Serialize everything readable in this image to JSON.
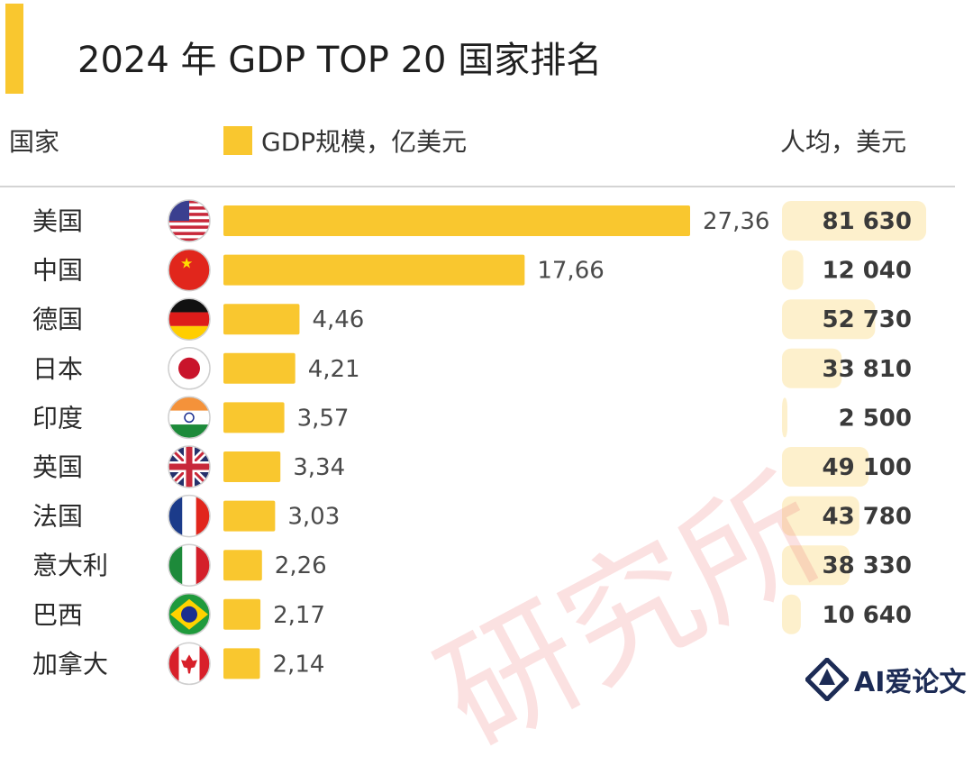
{
  "header": {
    "title": "2024 年 GDP TOP 20 国家排名",
    "col_country": "国家",
    "legend_label": "GDP规模，亿美元",
    "col_per_capita": "人均，美元"
  },
  "colors": {
    "bar": "#f9c72f",
    "per_capita_bar": "#fdf0cc",
    "accent": "#f9c72f"
  },
  "chart_data": {
    "type": "bar",
    "orientation": "horizontal",
    "title": "2024 年 GDP TOP 20 国家排名",
    "categories": [
      "美国",
      "中国",
      "德国",
      "日本",
      "印度",
      "英国",
      "法国",
      "意大利",
      "巴西",
      "加拿大"
    ],
    "series": [
      {
        "name": "GDP规模，亿美元",
        "values": [
          27.36,
          17.66,
          4.46,
          4.21,
          3.57,
          3.34,
          3.03,
          2.26,
          2.17,
          2.14
        ],
        "labels": [
          "27,36",
          "17,66",
          "4,46",
          "4,21",
          "3,57",
          "3,34",
          "3,03",
          "2,26",
          "2,17",
          "2,14"
        ]
      },
      {
        "name": "人均，美元",
        "values": [
          81630,
          12040,
          52730,
          33810,
          2500,
          49100,
          43780,
          38330,
          10640,
          0
        ],
        "labels": [
          "81 630",
          "12 040",
          "52 730",
          "33 810",
          "2 500",
          "49 100",
          "43 780",
          "38 330",
          "10 640",
          ""
        ]
      }
    ],
    "flags": [
      "us-flag-icon",
      "china-flag-icon",
      "germany-flag-icon",
      "japan-flag-icon",
      "india-flag-icon",
      "uk-flag-icon",
      "france-flag-icon",
      "italy-flag-icon",
      "brazil-flag-icon",
      "canada-flag-icon"
    ],
    "grid": false,
    "legend_position": "top"
  },
  "watermark": "研究所",
  "logo": {
    "text": "AI爱论文",
    "icon": "ai-logo-icon"
  }
}
